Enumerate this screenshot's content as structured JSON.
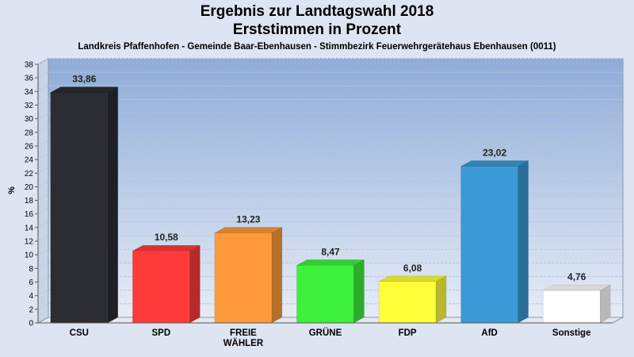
{
  "chart_data": {
    "type": "bar",
    "title": "Ergebnis zur Landtagswahl 2018",
    "subtitle": "Erststimmen in Prozent",
    "caption": "Landkreis Pfaffenhofen - Gemeinde Baar-Ebenhausen - Stimmbezirk Feuerwehrgerätehaus Ebenhausen (0011)",
    "ylabel": "%",
    "xlabel": "",
    "ylim": [
      0,
      38
    ],
    "yticks": [
      "0",
      "2",
      "4",
      "6",
      "8",
      "10",
      "12",
      "14",
      "16",
      "18",
      "20",
      "22",
      "24",
      "26",
      "28",
      "30",
      "32",
      "34",
      "36",
      "38"
    ],
    "categories": [
      [
        "CSU"
      ],
      [
        "SPD"
      ],
      [
        "FREIE",
        "WÄHLER"
      ],
      [
        "GRÜNE"
      ],
      [
        "FDP"
      ],
      [
        "AfD"
      ],
      [
        "Sonstige"
      ]
    ],
    "values": [
      33.86,
      10.58,
      13.23,
      8.47,
      6.08,
      23.02,
      4.76
    ],
    "value_labels": [
      "33,86",
      "10,58",
      "13,23",
      "8,47",
      "6,08",
      "23,02",
      "4,76"
    ],
    "colors": [
      "#2b2d33",
      "#ff3a3a",
      "#ff9a3a",
      "#3cf03c",
      "#ffff3a",
      "#3a9ad6",
      "#ffffff"
    ],
    "grid": true,
    "legend": "none",
    "style": "3d"
  }
}
